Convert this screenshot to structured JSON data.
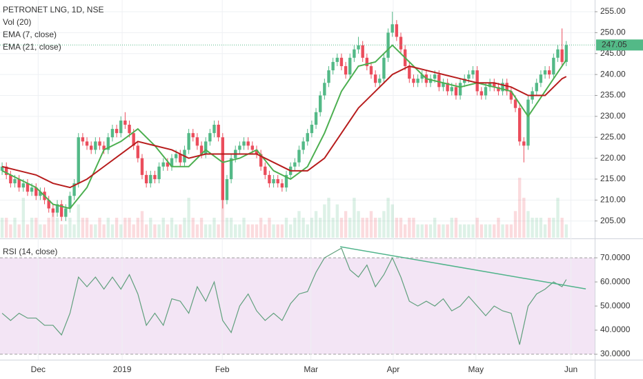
{
  "chart_data": {
    "type": "candlestick",
    "title": "PETRONET LNG, 1D, NSE",
    "legend": [
      "Vol (20)",
      "EMA (7, close)",
      "EMA (21, close)"
    ],
    "up_color": "#53b987",
    "down_color": "#eb4d5c",
    "xlim": [
      -0.5,
      139.7
    ],
    "xticks": [
      {
        "value": 8.5,
        "label": "Dec"
      },
      {
        "value": 28.3,
        "label": "2019"
      },
      {
        "value": 51.9,
        "label": "Feb"
      },
      {
        "value": 72.8,
        "label": "Mar"
      },
      {
        "value": 92.2,
        "label": "Apr"
      },
      {
        "value": 111.7,
        "label": "May"
      },
      {
        "value": 134.1,
        "label": "Jun"
      }
    ],
    "ylim": [
      201,
      257.8
    ],
    "yticks": [
      {
        "value": 205,
        "label": "205.00"
      },
      {
        "value": 210,
        "label": "210.00"
      },
      {
        "value": 215,
        "label": "215.00"
      },
      {
        "value": 220,
        "label": "220.00"
      },
      {
        "value": 225,
        "label": "225.00"
      },
      {
        "value": 230,
        "label": "230.00"
      },
      {
        "value": 235,
        "label": "235.00"
      },
      {
        "value": 240,
        "label": "240.00"
      },
      {
        "value": 245,
        "label": "245.00"
      },
      {
        "value": 250,
        "label": "250.00"
      },
      {
        "value": 255,
        "label": "255.00"
      }
    ],
    "last_price": 247.05,
    "open": [
      217,
      218,
      216,
      214,
      215,
      213,
      214,
      212,
      213,
      211,
      212,
      210,
      208,
      207,
      209,
      206,
      208,
      211,
      214,
      225,
      224,
      223,
      222,
      224,
      223,
      222,
      225,
      227,
      226,
      229,
      228,
      226,
      223,
      220,
      216,
      214,
      216,
      215,
      218,
      219,
      218,
      220,
      221,
      219,
      222,
      226,
      225,
      223,
      221,
      224,
      226,
      228,
      225,
      210,
      215,
      220,
      222,
      223,
      224,
      223,
      222,
      221,
      218,
      216,
      214,
      215,
      214,
      213,
      216,
      218,
      219,
      222,
      224,
      226,
      228,
      231,
      235,
      238,
      241,
      243,
      244,
      242,
      240,
      244,
      246,
      247,
      244,
      242,
      240,
      238,
      239,
      244,
      250,
      252,
      249,
      246,
      242,
      239,
      238,
      239,
      240,
      238,
      239,
      240,
      237,
      238,
      236,
      237,
      235,
      238,
      239,
      240,
      241,
      236,
      235,
      237,
      238,
      237,
      236,
      238,
      236,
      234,
      232,
      224,
      223,
      234,
      236,
      238,
      240,
      241,
      240,
      244,
      246,
      243
    ],
    "high": [
      219,
      219,
      217,
      216,
      216,
      215,
      215,
      214,
      214,
      213,
      213,
      211,
      209,
      210,
      210,
      209,
      212,
      215,
      226,
      226,
      225,
      224,
      225,
      225,
      224,
      226,
      228,
      228,
      230,
      231,
      229,
      227,
      224,
      221,
      217,
      217,
      217,
      219,
      220,
      220,
      221,
      222,
      222,
      223,
      227,
      227,
      226,
      224,
      225,
      227,
      229,
      229,
      226,
      216,
      221,
      223,
      224,
      225,
      225,
      224,
      223,
      222,
      219,
      217,
      216,
      216,
      215,
      217,
      219,
      220,
      223,
      225,
      227,
      229,
      232,
      236,
      239,
      242,
      244,
      245,
      245,
      243,
      245,
      247,
      249,
      248,
      245,
      243,
      241,
      240,
      245,
      251,
      255,
      253,
      250,
      247,
      243,
      240,
      240,
      241,
      241,
      240,
      241,
      241,
      239,
      239,
      238,
      238,
      239,
      240,
      241,
      242,
      242,
      237,
      238,
      239,
      239,
      238,
      239,
      239,
      237,
      235,
      233,
      225,
      235,
      237,
      239,
      241,
      242,
      242,
      245,
      247,
      251,
      248
    ],
    "low": [
      216,
      215,
      213,
      213,
      212,
      212,
      211,
      211,
      210,
      210,
      209,
      207,
      206,
      206,
      205,
      205,
      207,
      210,
      213,
      223,
      222,
      221,
      221,
      222,
      221,
      221,
      224,
      225,
      225,
      227,
      225,
      222,
      219,
      215,
      213,
      213,
      214,
      214,
      217,
      217,
      217,
      219,
      218,
      218,
      221,
      224,
      222,
      220,
      220,
      223,
      225,
      224,
      208,
      209,
      214,
      219,
      221,
      222,
      222,
      221,
      220,
      217,
      215,
      213,
      213,
      213,
      212,
      212,
      215,
      217,
      218,
      221,
      223,
      225,
      227,
      230,
      234,
      237,
      240,
      242,
      241,
      239,
      239,
      243,
      245,
      243,
      241,
      239,
      237,
      237,
      238,
      243,
      249,
      248,
      245,
      241,
      238,
      237,
      237,
      238,
      237,
      237,
      238,
      236,
      236,
      235,
      235,
      234,
      234,
      237,
      238,
      239,
      235,
      234,
      234,
      236,
      236,
      235,
      235,
      235,
      233,
      231,
      223,
      219,
      222,
      233,
      235,
      237,
      239,
      239,
      239,
      243,
      242,
      242
    ],
    "close": [
      218,
      216,
      214,
      215,
      213,
      214,
      212,
      213,
      211,
      212,
      210,
      208,
      207,
      209,
      206,
      208,
      211,
      214,
      225,
      224,
      223,
      222,
      224,
      223,
      222,
      225,
      227,
      226,
      229,
      228,
      226,
      223,
      220,
      216,
      214,
      216,
      215,
      218,
      219,
      218,
      220,
      221,
      219,
      222,
      226,
      225,
      223,
      221,
      224,
      226,
      228,
      225,
      210,
      215,
      220,
      222,
      223,
      224,
      223,
      222,
      221,
      218,
      216,
      214,
      215,
      214,
      213,
      216,
      218,
      219,
      222,
      224,
      226,
      228,
      231,
      235,
      238,
      241,
      243,
      244,
      242,
      240,
      244,
      246,
      247,
      244,
      242,
      240,
      238,
      239,
      244,
      250,
      252,
      249,
      246,
      242,
      239,
      238,
      239,
      240,
      238,
      239,
      240,
      237,
      238,
      236,
      237,
      235,
      238,
      239,
      240,
      241,
      236,
      235,
      237,
      238,
      237,
      236,
      238,
      236,
      234,
      232,
      224,
      223,
      234,
      236,
      238,
      240,
      241,
      240,
      244,
      246,
      243,
      247.05
    ],
    "volume": [
      3,
      3,
      2,
      3,
      2,
      6,
      2,
      3,
      3,
      2,
      2,
      3,
      4,
      3,
      2,
      2,
      3,
      2,
      5,
      3,
      3,
      2,
      2,
      3,
      2,
      3,
      2,
      3,
      2,
      3,
      3,
      2,
      3,
      4,
      2,
      3,
      2,
      2,
      3,
      2,
      3,
      2,
      2,
      3,
      6,
      3,
      2,
      3,
      2,
      2,
      3,
      2,
      7,
      3,
      3,
      2,
      2,
      3,
      2,
      2,
      2,
      3,
      2,
      3,
      2,
      2,
      2,
      3,
      2,
      3,
      4,
      3,
      2,
      3,
      4,
      3,
      5,
      6,
      3,
      5,
      3,
      4,
      3,
      6,
      4,
      3,
      3,
      4,
      3,
      3,
      4,
      6,
      5,
      3,
      3,
      2,
      3,
      3,
      2,
      2,
      2,
      2,
      3,
      2,
      2,
      2,
      3,
      3,
      2,
      2,
      2,
      2,
      3,
      2,
      2,
      2,
      2,
      3,
      2,
      2,
      2,
      4,
      9,
      6,
      4,
      3,
      3,
      3,
      2,
      3,
      3,
      6,
      3,
      2
    ],
    "vlim": [
      0,
      9.3
    ],
    "series": [
      {
        "name": "EMA (7, close)",
        "color": "#4caf50",
        "x": [
          0,
          4,
          8,
          12,
          16,
          20,
          24,
          28,
          32,
          36,
          40,
          44,
          48,
          52,
          56,
          60,
          64,
          68,
          72,
          76,
          80,
          84,
          88,
          92,
          96,
          100,
          104,
          108,
          112,
          116,
          120,
          124,
          128,
          132,
          133
        ],
        "values": [
          217,
          215,
          213,
          209,
          208,
          213,
          222,
          224,
          227,
          223,
          218,
          218,
          222,
          219,
          220,
          222,
          217,
          215,
          218,
          226,
          236,
          242,
          243,
          247,
          243,
          239,
          238,
          237,
          238,
          237,
          236,
          230,
          236,
          242,
          243.5
        ]
      },
      {
        "name": "EMA (21, close)",
        "color": "#b71c1c",
        "x": [
          0,
          4,
          8,
          12,
          16,
          20,
          24,
          28,
          32,
          36,
          40,
          44,
          48,
          52,
          56,
          60,
          64,
          68,
          72,
          76,
          80,
          84,
          88,
          92,
          96,
          100,
          104,
          108,
          112,
          116,
          120,
          124,
          128,
          132,
          133
        ],
        "values": [
          218,
          217,
          216,
          214,
          213,
          215,
          218,
          221,
          224,
          223,
          222,
          220,
          221,
          221,
          221,
          221,
          219,
          217,
          217,
          220,
          226,
          232,
          236,
          240,
          242,
          241,
          240,
          239,
          238,
          238,
          237,
          235,
          235,
          239,
          239.5
        ]
      }
    ],
    "rsi": {
      "name": "RSI (14, close)",
      "color": "#5f9f7c",
      "ylim": [
        28.3,
        76.9
      ],
      "yticks": [
        {
          "value": 30,
          "label": "30.0000"
        },
        {
          "value": 40,
          "label": "40.0000"
        },
        {
          "value": 50,
          "label": "50.0000"
        },
        {
          "value": 60,
          "label": "60.0000"
        },
        {
          "value": 70,
          "label": "70.0000"
        }
      ],
      "band": [
        30,
        70
      ],
      "x": [
        0,
        2,
        4,
        6,
        8,
        10,
        12,
        14,
        16,
        18,
        20,
        22,
        24,
        26,
        28,
        30,
        32,
        34,
        36,
        38,
        40,
        42,
        44,
        46,
        48,
        50,
        52,
        54,
        56,
        58,
        60,
        62,
        64,
        66,
        68,
        70,
        72,
        74,
        76,
        78,
        80,
        82,
        84,
        86,
        88,
        90,
        92,
        94,
        96,
        98,
        100,
        102,
        104,
        106,
        108,
        110,
        112,
        114,
        116,
        118,
        120,
        122,
        124,
        126,
        128,
        130,
        132,
        133
      ],
      "values": [
        47,
        44,
        47,
        45,
        45,
        42,
        42,
        38,
        47,
        62,
        58,
        62,
        57,
        62,
        57,
        63,
        55,
        42,
        47,
        42,
        53,
        52,
        47,
        58,
        52,
        60,
        44,
        39,
        50,
        55,
        48,
        44,
        47,
        44,
        51,
        55,
        56,
        64,
        70,
        72,
        74,
        65,
        62,
        67,
        58,
        63,
        70,
        62,
        52,
        50,
        52,
        50,
        53,
        48,
        50,
        54,
        50,
        46,
        50,
        48,
        47,
        34,
        50,
        55,
        57,
        60,
        58,
        61
      ],
      "trendline": {
        "color": "#4fb38a",
        "x": [
          79.7,
          137.6
        ],
        "values": [
          74.6,
          57.1
        ]
      }
    }
  }
}
